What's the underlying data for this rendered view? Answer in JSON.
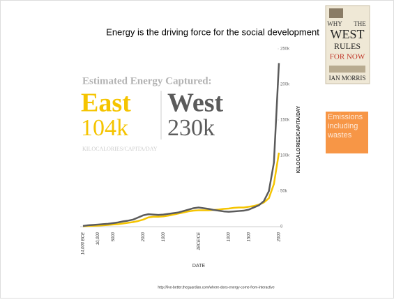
{
  "slide_title": "Energy is the driving force for the social development",
  "book": {
    "line1": "WHY",
    "line2": "THE",
    "line3": "WEST",
    "line4": "RULES",
    "line5": "FOR NOW",
    "author": "IAN MORRIS"
  },
  "note": "Emissions including wastes",
  "source": "http://live-better.theguardian.com/where-does-energy-come-from-interactive",
  "chart_data": {
    "type": "line",
    "heading": "Estimated Energy Captured:",
    "east_value": "104k",
    "west_value": "230k",
    "unit": "KILOCALORIES/CAPITA/DAY",
    "x_label": "DATE",
    "y_label": "KILOCALORIES/CAPITA/DAY",
    "categories": [
      "14,000 BCE",
      null,
      null,
      "10,000",
      null,
      null,
      "5000",
      null,
      null,
      null,
      null,
      null,
      "2000",
      null,
      null,
      null,
      "1000",
      null,
      null,
      null,
      null,
      null,
      null,
      "1BCE/CE",
      null,
      null,
      null,
      null,
      null,
      "1000",
      null,
      null,
      null,
      "1500",
      null,
      null,
      null,
      null,
      null,
      "2000"
    ],
    "series": [
      {
        "name": "East",
        "color": "#f5c400",
        "values": [
          500,
          1000,
          1200,
          1500,
          2000,
          2500,
          3000,
          3500,
          4500,
          5500,
          6500,
          8000,
          10000,
          13000,
          14000,
          14000,
          14500,
          15500,
          17000,
          18500,
          20000,
          21500,
          22500,
          23000,
          23000,
          23000,
          23500,
          24000,
          25000,
          25500,
          26500,
          27000,
          27000,
          28000,
          29000,
          31000,
          34000,
          40000,
          60000,
          104000
        ]
      },
      {
        "name": "West",
        "color": "#5b5b5b",
        "values": [
          1000,
          2000,
          2500,
          3000,
          3500,
          4000,
          5000,
          6000,
          7500,
          8500,
          10000,
          13000,
          16000,
          17500,
          17000,
          16500,
          17000,
          18000,
          19000,
          20000,
          22000,
          24000,
          26000,
          27000,
          26000,
          25000,
          23500,
          22500,
          21500,
          21000,
          21500,
          22000,
          22500,
          24000,
          27000,
          30000,
          36000,
          50000,
          90000,
          230000
        ]
      }
    ],
    "ylim": [
      0,
      250000
    ],
    "yticks": [
      0,
      {
        "value": 50000,
        "label": "50k"
      },
      {
        "value": 100000,
        "label": "100k"
      },
      {
        "value": 150000,
        "label": "150k"
      },
      {
        "value": 200000,
        "label": "200k"
      },
      {
        "value": 250000,
        "label": "250k"
      }
    ]
  }
}
